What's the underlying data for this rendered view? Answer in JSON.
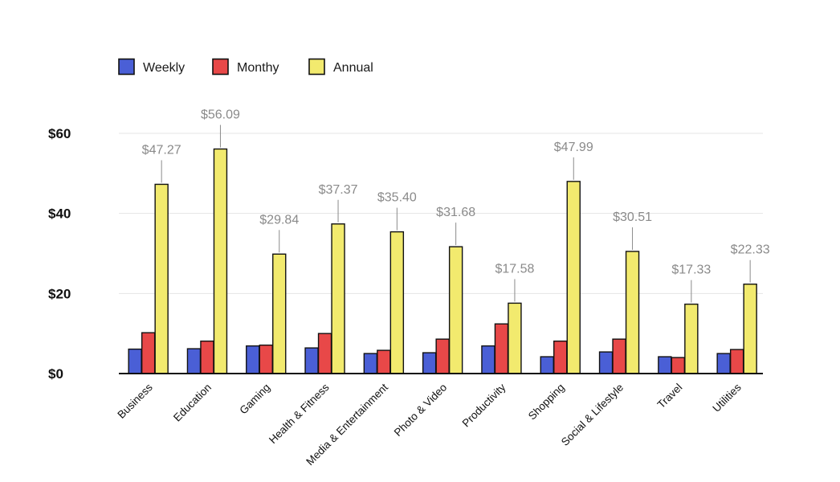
{
  "chart_data": {
    "type": "bar",
    "categories": [
      "Business",
      "Education",
      "Gaming",
      "Health & Fitness",
      "Media & Entertainment",
      "Photo & Video",
      "Productivity",
      "Shopping",
      "Social & Lifestyle",
      "Travel",
      "Utilities"
    ],
    "series": [
      {
        "name": "Weekly",
        "color": "#4a5fd6",
        "values": [
          6.1,
          6.2,
          6.9,
          6.4,
          5.0,
          5.2,
          6.9,
          4.2,
          5.4,
          4.2,
          5.0
        ]
      },
      {
        "name": "Monthy",
        "color": "#e84848",
        "values": [
          10.2,
          8.1,
          7.1,
          10.0,
          5.8,
          8.6,
          12.4,
          8.1,
          8.6,
          4.0,
          6.0
        ]
      },
      {
        "name": "Annual",
        "color": "#f2ea6e",
        "values": [
          47.27,
          56.09,
          29.84,
          37.37,
          35.4,
          31.68,
          17.58,
          47.99,
          30.51,
          17.33,
          22.33
        ]
      }
    ],
    "annual_labels": [
      "$47.27",
      "$56.09",
      "$29.84",
      "$37.37",
      "$35.40",
      "$31.68",
      "$17.58",
      "$47.99",
      "$30.51",
      "$17.33",
      "$22.33"
    ],
    "y_ticks": [
      {
        "value": 0,
        "label": "$0"
      },
      {
        "value": 20,
        "label": "$20"
      },
      {
        "value": 40,
        "label": "$40"
      },
      {
        "value": 60,
        "label": "$60"
      }
    ],
    "ylim": [
      0,
      60
    ],
    "grid": true,
    "legend_position": "top-left",
    "title": "",
    "xlabel": "",
    "ylabel": ""
  }
}
